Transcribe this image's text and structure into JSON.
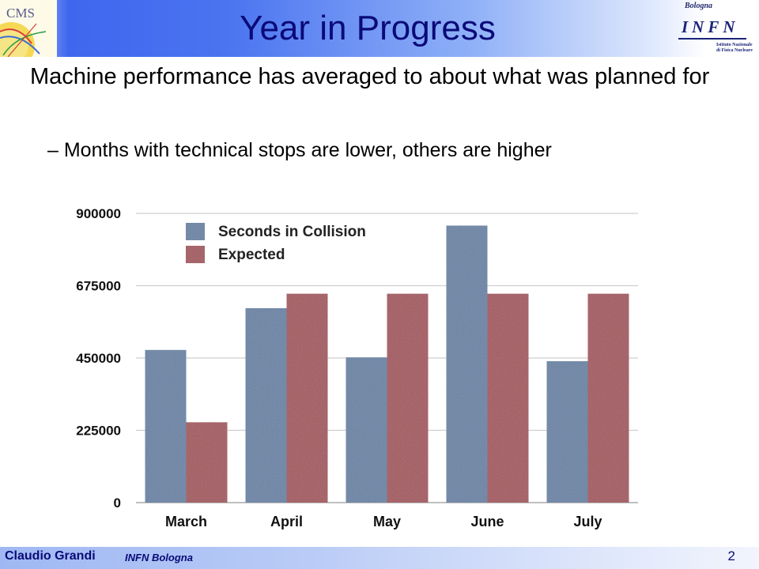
{
  "slide": {
    "title": "Year in Progress",
    "bullets": [
      "Machine performance has averaged to about what was planned for"
    ],
    "sub_bullets": [
      "Months with technical stops are lower, others are higher"
    ],
    "sub_bullet_marker": "–"
  },
  "logos": {
    "cms_text": "CMS",
    "infn_city": "Bologna",
    "infn_word": "INFN",
    "infn_sub_line1": "Istituto Nazionale",
    "infn_sub_line2": "di Fisica Nucleare"
  },
  "footer": {
    "author": "Claudio Grandi",
    "institution": "INFN Bologna",
    "page": "2"
  },
  "colors": {
    "title": "#0a0a78",
    "series_collision": "#6a84a6",
    "series_expected": "#a4585e",
    "grid": "#cfcfcf"
  },
  "chart_data": {
    "type": "bar",
    "categories": [
      "March",
      "April",
      "May",
      "June",
      "July"
    ],
    "series": [
      {
        "name": "Seconds in Collision",
        "values": [
          475000,
          605000,
          452000,
          862000,
          440000
        ]
      },
      {
        "name": "Expected",
        "values": [
          250000,
          650000,
          650000,
          650000,
          650000
        ]
      }
    ],
    "ylim": [
      0,
      900000
    ],
    "yticks": [
      0,
      225000,
      450000,
      675000,
      900000
    ],
    "grid": true,
    "legend": "top-left",
    "title": "",
    "xlabel": "",
    "ylabel": ""
  }
}
